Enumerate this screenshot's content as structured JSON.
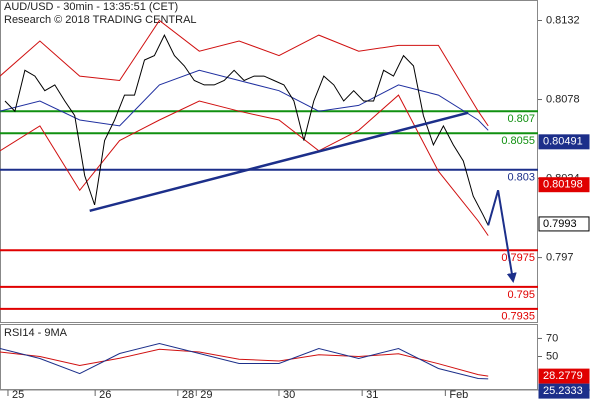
{
  "chart_data": [
    {
      "type": "line",
      "title": "AUD/USD - 30min - 13:35:51 (CET)",
      "subtitle": "Research © 2018 TRADING CENTRAL",
      "xlim": [
        0,
        108
      ],
      "ylim": [
        0.7926,
        0.8146
      ],
      "yticks": [
        0.8132,
        0.8078,
        0.8024,
        0.797
      ],
      "series": [
        {
          "color": "#d01010",
          "x": [
            0,
            8,
            16,
            24,
            32,
            40,
            48,
            56,
            64,
            72,
            80,
            88,
            96,
            98
          ],
          "values": [
            0.8094,
            0.8118,
            0.8094,
            0.8091,
            0.8132,
            0.8111,
            0.8118,
            0.8108,
            0.8122,
            0.8111,
            0.8115,
            0.8115,
            0.807,
            0.806
          ]
        },
        {
          "color": "#d01010",
          "x": [
            0,
            8,
            16,
            24,
            32,
            40,
            48,
            56,
            64,
            72,
            80,
            88,
            96,
            98
          ],
          "values": [
            0.8043,
            0.806,
            0.8016,
            0.805,
            0.8064,
            0.8077,
            0.807,
            0.8064,
            0.8043,
            0.8057,
            0.8081,
            0.8029,
            0.7995,
            0.7985
          ]
        },
        {
          "color": "#2030a0",
          "x": [
            0,
            8,
            16,
            24,
            32,
            40,
            48,
            56,
            64,
            72,
            80,
            88,
            96,
            98
          ],
          "values": [
            0.807,
            0.8077,
            0.8064,
            0.806,
            0.8088,
            0.8098,
            0.8091,
            0.8084,
            0.807,
            0.8074,
            0.8088,
            0.8081,
            0.8064,
            0.8057
          ]
        },
        {
          "color": "#000000",
          "x": [
            1,
            3,
            5,
            7,
            9,
            11,
            13,
            15,
            17,
            19,
            21,
            23,
            25,
            27,
            29,
            31,
            33,
            35,
            37,
            39,
            41,
            43,
            45,
            47,
            49,
            51,
            53,
            55,
            57,
            59,
            61,
            63,
            65,
            67,
            69,
            71,
            73,
            75,
            77,
            79,
            81,
            83,
            85,
            87,
            89,
            91,
            93,
            95,
            97,
            98
          ],
          "values": [
            0.8077,
            0.807,
            0.8098,
            0.8094,
            0.8084,
            0.8088,
            0.8077,
            0.8067,
            0.8026,
            0.8006,
            0.805,
            0.8064,
            0.8081,
            0.8081,
            0.8105,
            0.8108,
            0.8122,
            0.8108,
            0.8101,
            0.8091,
            0.8088,
            0.8088,
            0.8091,
            0.8098,
            0.8091,
            0.8094,
            0.8094,
            0.8091,
            0.8088,
            0.8077,
            0.805,
            0.8077,
            0.8094,
            0.8088,
            0.8077,
            0.8084,
            0.8077,
            0.8077,
            0.8098,
            0.8094,
            0.8108,
            0.8101,
            0.8067,
            0.8047,
            0.806,
            0.8047,
            0.8036,
            0.8012,
            0.7999,
            0.7992
          ]
        }
      ],
      "levels": [
        {
          "value": 0.807,
          "color": "#109010"
        },
        {
          "value": 0.8055,
          "color": "#109010"
        },
        {
          "value": 0.803,
          "color": "#1c2f8a"
        },
        {
          "value": 0.7975,
          "color": "#e00000"
        },
        {
          "value": 0.795,
          "color": "#e00000"
        },
        {
          "value": 0.7935,
          "color": "#e00000"
        }
      ],
      "trendline": {
        "color": "#1c2f8a",
        "x": [
          18,
          94
        ],
        "values": [
          0.8002,
          0.8069
        ]
      },
      "forecast": {
        "color": "#1c2f8a",
        "x": [
          98,
          100,
          103
        ],
        "values": [
          0.7992,
          0.8016,
          0.7954
        ]
      },
      "price_boxes": [
        {
          "value": 0.80491,
          "color": "#1c2f8a"
        },
        {
          "value": 0.80198,
          "color": "#e00000"
        },
        {
          "value": 0.7993,
          "color": "#ffffff"
        }
      ]
    },
    {
      "type": "line",
      "title": "RSI14 - 9MA",
      "xlim": [
        0,
        108
      ],
      "ylim": [
        14,
        86
      ],
      "yticks": [
        70,
        50
      ],
      "xticks": [
        {
          "value": 1.6,
          "label": "25"
        },
        {
          "value": 19.1,
          "label": "26"
        },
        {
          "value": 35.7,
          "label": "28"
        },
        {
          "value": 39.4,
          "label": "29"
        },
        {
          "value": 56,
          "label": "30"
        },
        {
          "value": 72.7,
          "label": "31"
        },
        {
          "value": 89.4,
          "label": "Feb"
        }
      ],
      "series": [
        {
          "color": "#d01010",
          "x": [
            0,
            8,
            16,
            24,
            32,
            40,
            48,
            56,
            64,
            72,
            80,
            88,
            96,
            98
          ],
          "values": [
            55,
            50,
            40,
            48,
            58,
            55,
            47,
            45,
            52,
            50,
            53,
            42,
            30,
            28.3
          ]
        },
        {
          "color": "#1c2f8a",
          "x": [
            0,
            8,
            16,
            24,
            32,
            40,
            48,
            56,
            64,
            72,
            80,
            88,
            96,
            98
          ],
          "values": [
            58.9,
            47.8,
            31.1,
            53.3,
            64.4,
            53.3,
            42.2,
            42.2,
            58.9,
            47.8,
            58.9,
            36.7,
            25.6,
            25.2
          ]
        }
      ],
      "price_boxes": [
        {
          "value": 28.2779,
          "color": "#e00000"
        },
        {
          "value": 25.2333,
          "color": "#1c2f8a"
        }
      ]
    }
  ]
}
